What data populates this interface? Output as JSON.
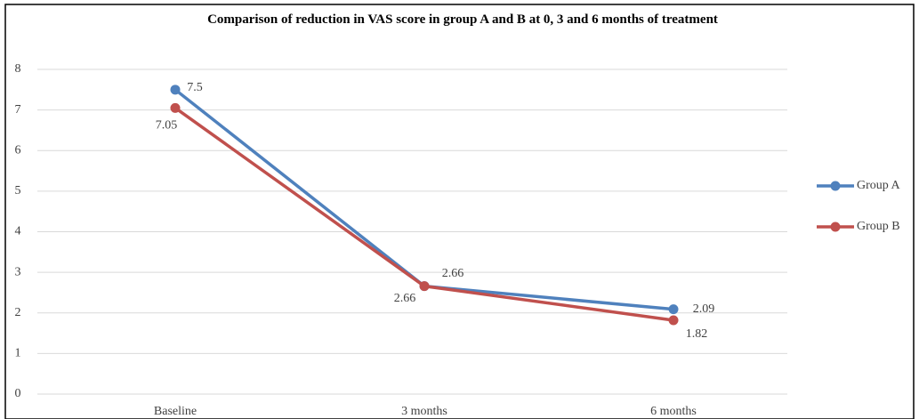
{
  "chart_data": {
    "type": "line",
    "title": "Comparison of reduction in VAS score in group A and B at 0, 3 and 6 months of treatment",
    "categories": [
      "Baseline",
      "3 months",
      "6 months"
    ],
    "series": [
      {
        "name": "Group A",
        "color": "#4f81bd",
        "values": [
          7.5,
          2.66,
          2.09
        ]
      },
      {
        "name": "Group B",
        "color": "#c0504d",
        "values": [
          7.05,
          2.66,
          1.82
        ]
      }
    ],
    "ylim": [
      0,
      8
    ],
    "yticks": [
      0,
      1,
      2,
      3,
      4,
      5,
      6,
      7,
      8
    ],
    "grid": true,
    "legend": "right"
  }
}
